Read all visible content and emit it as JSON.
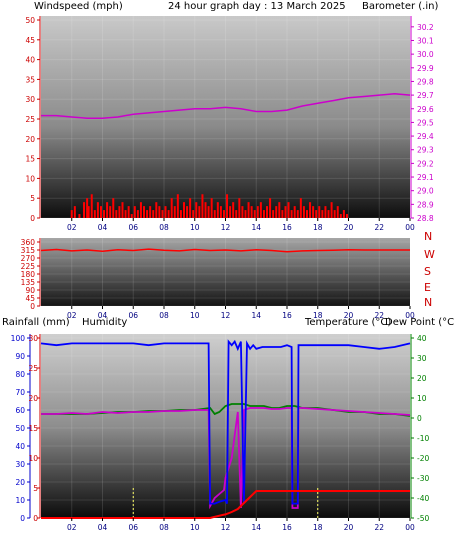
{
  "header": {
    "left": "Windspeed (mph)",
    "center": "24 hour graph day : 13 March 2025",
    "right": "Barometer (.in)"
  },
  "bottom_header": {
    "rainfall": "Rainfall (mm)",
    "humidity": "Humidity",
    "temperature": "Temperature (°C)",
    "dewpoint": "Dew Point (°C)"
  },
  "colors": {
    "wind": "#ff0000",
    "barometer": "#cc00cc",
    "direction": "#ff0000",
    "humidity": "#0000ff",
    "temperature": "#008000",
    "dewpoint": "#cc00cc",
    "rain": "#ff0000",
    "tick_red": "#cc0000",
    "tick_magenta": "#cc00cc",
    "tick_blue": "#0000cc",
    "tick_green": "#008000"
  },
  "chart_data": [
    {
      "type": "bar",
      "name": "wind-barometer",
      "x_ticks": [
        "02",
        "04",
        "06",
        "08",
        "10",
        "12",
        "14",
        "16",
        "18",
        "20",
        "22",
        "00"
      ],
      "left_axis": {
        "label": "Windspeed (mph)",
        "ticks": [
          0,
          5,
          10,
          15,
          20,
          25,
          30,
          35,
          40,
          45,
          50
        ],
        "ylim": [
          0,
          50
        ]
      },
      "right_axis": {
        "label": "Barometer (.in)",
        "ticks": [
          28.8,
          28.9,
          29.0,
          29.1,
          29.2,
          29.3,
          29.4,
          29.5,
          29.6,
          29.7,
          29.8,
          29.9,
          30.0,
          30.1,
          30.2
        ],
        "ylim": [
          28.8,
          30.25
        ]
      },
      "wind_hours": [
        2.0,
        2.2,
        2.5,
        2.8,
        3.0,
        3.1,
        3.3,
        3.5,
        3.7,
        3.9,
        4.1,
        4.3,
        4.5,
        4.7,
        4.9,
        5.1,
        5.3,
        5.5,
        5.7,
        5.9,
        6.1,
        6.3,
        6.5,
        6.7,
        6.9,
        7.1,
        7.3,
        7.5,
        7.7,
        7.9,
        8.1,
        8.3,
        8.5,
        8.7,
        8.9,
        9.1,
        9.3,
        9.5,
        9.7,
        9.9,
        10.1,
        10.3,
        10.5,
        10.7,
        10.9,
        11.1,
        11.3,
        11.5,
        11.7,
        11.9,
        12.1,
        12.3,
        12.5,
        12.7,
        12.9,
        13.1,
        13.3,
        13.5,
        13.7,
        13.9,
        14.1,
        14.3,
        14.5,
        14.7,
        14.9,
        15.1,
        15.3,
        15.5,
        15.7,
        15.9,
        16.1,
        16.3,
        16.5,
        16.7,
        16.9,
        17.1,
        17.3,
        17.5,
        17.7,
        17.9,
        18.1,
        18.3,
        18.5,
        18.7,
        18.9,
        19.1,
        19.3,
        19.5,
        19.7,
        19.9
      ],
      "wind_values": [
        2,
        3,
        1,
        4,
        5,
        3,
        6,
        2,
        4,
        3,
        2,
        4,
        3,
        5,
        2,
        3,
        4,
        2,
        3,
        1,
        3,
        2,
        4,
        3,
        2,
        3,
        2,
        4,
        3,
        2,
        3,
        2,
        5,
        3,
        6,
        2,
        4,
        3,
        5,
        2,
        4,
        3,
        6,
        4,
        3,
        5,
        2,
        4,
        3,
        2,
        6,
        3,
        4,
        2,
        5,
        3,
        2,
        4,
        3,
        2,
        3,
        4,
        2,
        3,
        5,
        2,
        3,
        4,
        2,
        3,
        4,
        2,
        3,
        2,
        5,
        3,
        2,
        4,
        3,
        2,
        3,
        2,
        3,
        2,
        4,
        2,
        3,
        1,
        2,
        1
      ],
      "barometer_hours": [
        0,
        1,
        2,
        3,
        4,
        5,
        6,
        7,
        8,
        9,
        10,
        11,
        12,
        13,
        14,
        15,
        16,
        17,
        18,
        19,
        20,
        21,
        22,
        23,
        24
      ],
      "barometer_values": [
        29.55,
        29.55,
        29.54,
        29.53,
        29.53,
        29.54,
        29.56,
        29.57,
        29.58,
        29.59,
        29.6,
        29.6,
        29.61,
        29.6,
        29.58,
        29.58,
        29.59,
        29.62,
        29.64,
        29.66,
        29.68,
        29.69,
        29.7,
        29.71,
        29.7
      ]
    },
    {
      "type": "line",
      "name": "wind-direction",
      "x_ticks": [
        "02",
        "04",
        "06",
        "08",
        "10",
        "12",
        "14",
        "16",
        "18",
        "20",
        "22",
        "00"
      ],
      "left_ticks": [
        0,
        45,
        90,
        135,
        180,
        225,
        270,
        315,
        360
      ],
      "ylim": [
        0,
        360
      ],
      "compass_labels": [
        "N",
        "W",
        "S",
        "E",
        "N"
      ],
      "hours": [
        0,
        1,
        2,
        3,
        4,
        5,
        6,
        7,
        8,
        9,
        10,
        11,
        12,
        13,
        14,
        15,
        16,
        17,
        18,
        19,
        20,
        21,
        22,
        23,
        24
      ],
      "values": [
        312,
        318,
        310,
        315,
        308,
        316,
        312,
        320,
        314,
        310,
        318,
        312,
        315,
        310,
        316,
        312,
        305,
        310,
        312,
        314,
        316,
        315,
        315,
        315,
        315
      ]
    },
    {
      "type": "line",
      "name": "rain-humidity-temp-dew",
      "x_ticks": [
        "02",
        "04",
        "06",
        "08",
        "10",
        "12",
        "14",
        "16",
        "18",
        "20",
        "22",
        "00"
      ],
      "humidity_axis": {
        "label": "Humidity",
        "ticks": [
          0,
          10,
          20,
          30,
          40,
          50,
          60,
          70,
          80,
          90,
          100
        ],
        "ylim": [
          0,
          100
        ]
      },
      "rain_axis": {
        "label": "Rainfall (mm)",
        "ticks": [
          0,
          5,
          10,
          15,
          20,
          25,
          30
        ],
        "ylim": [
          0,
          30
        ]
      },
      "temp_axis": {
        "label": "Temperature (°C)",
        "ticks": [
          40,
          30,
          20,
          10,
          0,
          -10,
          -20,
          -30,
          -40,
          -50
        ],
        "ylim": [
          -50,
          40
        ]
      },
      "series": [
        {
          "name": "Humidity",
          "hours": [
            0,
            1,
            2,
            3,
            4,
            5,
            6,
            7,
            8,
            9,
            10,
            10.9,
            11.0,
            11.3,
            11.6,
            12.0,
            12.1,
            12.2,
            12.4,
            12.6,
            12.8,
            13.0,
            13.2,
            13.4,
            13.6,
            13.8,
            14.0,
            14.4,
            14.8,
            15.2,
            15.6,
            16.0,
            16.3,
            16.35,
            16.7,
            16.75,
            17.0,
            18,
            19,
            20,
            21,
            22,
            23,
            24
          ],
          "values": [
            97,
            96,
            97,
            97,
            97,
            97,
            97,
            96,
            97,
            97,
            97,
            97,
            8,
            8,
            9,
            10,
            8,
            98,
            96,
            98,
            94,
            98,
            8,
            97,
            94,
            96,
            94,
            95,
            95,
            95,
            95,
            96,
            95,
            8,
            8,
            96,
            96,
            96,
            96,
            96,
            95,
            94,
            95,
            97
          ]
        },
        {
          "name": "Temperature (°C)",
          "hours": [
            0,
            1,
            2,
            3,
            4,
            5,
            6,
            7,
            8,
            9,
            10,
            10.5,
            11.0,
            11.3,
            11.6,
            12.0,
            12.4,
            12.8,
            13.2,
            13.6,
            14.0,
            14.5,
            15,
            15.5,
            16,
            16.5,
            17,
            18,
            19,
            20,
            21,
            22,
            23,
            24
          ],
          "values": [
            2,
            2,
            2,
            2,
            2.5,
            3,
            3,
            3.5,
            3.5,
            4,
            4,
            4.5,
            5,
            2,
            3,
            6,
            7,
            7,
            7,
            6,
            6,
            6,
            5,
            5,
            6,
            6,
            5,
            5,
            4,
            3,
            3,
            2,
            2,
            1
          ]
        },
        {
          "name": "Dew Point (°C)",
          "hours": [
            0,
            1,
            2,
            3,
            4,
            5,
            6,
            7,
            8,
            9,
            10,
            10.9,
            11.0,
            11.3,
            11.6,
            11.9,
            12.0,
            12.4,
            12.8,
            13.0,
            13.2,
            13.6,
            14.0,
            14.5,
            15,
            15.5,
            16.0,
            16.3,
            16.35,
            16.7,
            16.75,
            17,
            18,
            19,
            20,
            21,
            22,
            23,
            24
          ],
          "values": [
            2,
            2,
            2.5,
            2,
            3,
            2.5,
            3,
            3,
            3.5,
            3.5,
            4,
            4,
            -44,
            -40,
            -38,
            -36,
            -30,
            -20,
            3,
            -45,
            4,
            5,
            5,
            5,
            4.5,
            4.5,
            5,
            5,
            -45,
            -45,
            5,
            5,
            4.5,
            4,
            3.5,
            3,
            2.5,
            2,
            1.5
          ]
        },
        {
          "name": "Rainfall (mm)",
          "hours": [
            0,
            11.0,
            11.3,
            11.8,
            12.0,
            12.4,
            12.8,
            13.2,
            13.6,
            14.0,
            16.3,
            16.4,
            24
          ],
          "values": [
            0,
            0,
            0.2,
            0.5,
            0.6,
            1.0,
            1.5,
            2.5,
            3.5,
            4.5,
            4.5,
            4.5,
            4.5
          ]
        }
      ],
      "rain_markers_hours": [
        6.0,
        18.0
      ]
    }
  ]
}
